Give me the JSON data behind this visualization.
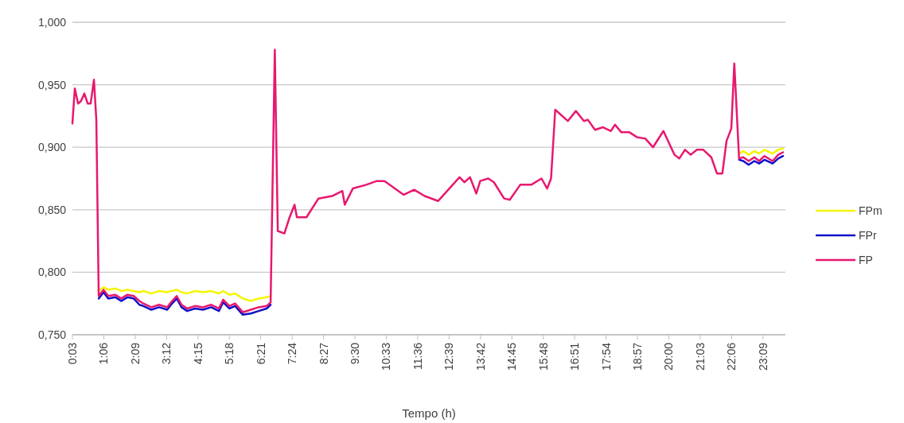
{
  "chart_data": {
    "type": "line",
    "xlabel": "Tempo (h)",
    "x": [
      0.05,
      0.13,
      0.24,
      0.34,
      0.45,
      0.56,
      0.66,
      0.77,
      0.85,
      0.93,
      1.09,
      1.25,
      1.49,
      1.68,
      1.89,
      2.1,
      2.29,
      2.42,
      2.69,
      2.95,
      3.22,
      3.35,
      3.54,
      3.7,
      3.89,
      4.15,
      4.42,
      4.69,
      4.95,
      5.09,
      5.3,
      5.49,
      5.75,
      6.02,
      6.28,
      6.55,
      6.68,
      6.82,
      6.92,
      7.14,
      7.3,
      7.48,
      7.56,
      7.88,
      8.28,
      8.74,
      9.08,
      9.16,
      9.43,
      9.88,
      10.23,
      10.49,
      11.13,
      11.48,
      11.83,
      12.28,
      13.0,
      13.16,
      13.35,
      13.56,
      13.69,
      13.96,
      14.15,
      14.49,
      14.68,
      15.03,
      15.4,
      15.74,
      15.93,
      16.06,
      16.2,
      16.62,
      16.89,
      17.16,
      17.29,
      17.53,
      17.8,
      18.06,
      18.2,
      18.41,
      18.68,
      18.94,
      19.21,
      19.47,
      19.82,
      20.09,
      20.19,
      20.35,
      20.54,
      20.73,
      20.94,
      21.15,
      21.42,
      21.61,
      21.79,
      21.93,
      22.09,
      22.19,
      22.35,
      22.49,
      22.67,
      22.86,
      23.02,
      23.2,
      23.47,
      23.66,
      23.82
    ],
    "series": [
      {
        "name": "FPm",
        "color": "#f5f500",
        "values": [
          null,
          null,
          null,
          null,
          null,
          null,
          null,
          null,
          null,
          0.785,
          0.788,
          0.786,
          0.787,
          0.785,
          0.786,
          0.785,
          0.784,
          0.785,
          0.783,
          0.785,
          0.784,
          0.785,
          0.786,
          0.784,
          0.783,
          0.785,
          0.784,
          0.785,
          0.783,
          0.785,
          0.782,
          0.783,
          0.779,
          0.777,
          0.779,
          0.78,
          0.781,
          null,
          null,
          null,
          null,
          null,
          null,
          null,
          null,
          null,
          null,
          null,
          null,
          null,
          null,
          null,
          null,
          null,
          null,
          null,
          null,
          null,
          null,
          null,
          null,
          null,
          null,
          null,
          null,
          null,
          null,
          null,
          null,
          null,
          null,
          null,
          null,
          null,
          null,
          null,
          null,
          null,
          null,
          null,
          null,
          null,
          null,
          null,
          null,
          null,
          null,
          null,
          null,
          null,
          null,
          null,
          null,
          null,
          null,
          null,
          null,
          null,
          0.895,
          0.897,
          0.894,
          0.897,
          0.895,
          0.898,
          0.895,
          0.898,
          0.899
        ]
      },
      {
        "name": "FPr",
        "color": "#1010c8",
        "values": [
          null,
          null,
          null,
          null,
          null,
          null,
          null,
          null,
          null,
          0.779,
          0.784,
          0.779,
          0.78,
          0.777,
          0.78,
          0.779,
          0.774,
          0.773,
          0.77,
          0.772,
          0.77,
          0.774,
          0.779,
          0.772,
          0.769,
          0.771,
          0.77,
          0.772,
          0.769,
          0.776,
          0.771,
          0.773,
          0.766,
          0.767,
          0.769,
          0.771,
          0.774,
          null,
          null,
          null,
          null,
          null,
          null,
          null,
          null,
          null,
          null,
          null,
          null,
          null,
          null,
          null,
          null,
          null,
          null,
          null,
          null,
          null,
          null,
          null,
          null,
          null,
          null,
          null,
          null,
          null,
          null,
          null,
          null,
          null,
          null,
          null,
          null,
          null,
          null,
          null,
          null,
          null,
          null,
          null,
          null,
          null,
          null,
          null,
          null,
          null,
          null,
          null,
          null,
          null,
          null,
          null,
          null,
          null,
          null,
          null,
          null,
          null,
          0.89,
          0.889,
          0.886,
          0.889,
          0.887,
          0.89,
          0.887,
          0.891,
          0.893
        ]
      },
      {
        "name": "FP",
        "color": "#e8186e",
        "values": [
          0.919,
          0.947,
          0.935,
          0.937,
          0.943,
          0.935,
          0.935,
          0.954,
          0.922,
          0.781,
          0.786,
          0.781,
          0.782,
          0.779,
          0.782,
          0.781,
          0.777,
          0.775,
          0.772,
          0.774,
          0.772,
          0.776,
          0.781,
          0.774,
          0.771,
          0.773,
          0.772,
          0.774,
          0.771,
          0.778,
          0.773,
          0.775,
          0.768,
          0.77,
          0.772,
          0.773,
          0.776,
          0.978,
          0.833,
          0.831,
          0.843,
          0.854,
          0.844,
          0.844,
          0.859,
          0.861,
          0.865,
          0.854,
          0.867,
          0.87,
          0.873,
          0.873,
          0.862,
          0.866,
          0.861,
          0.857,
          0.876,
          0.872,
          0.876,
          0.863,
          0.873,
          0.875,
          0.872,
          0.859,
          0.858,
          0.87,
          0.87,
          0.875,
          0.867,
          0.875,
          0.93,
          0.921,
          0.929,
          0.921,
          0.922,
          0.914,
          0.916,
          0.913,
          0.918,
          0.912,
          0.912,
          0.908,
          0.907,
          0.9,
          0.913,
          0.899,
          0.894,
          0.891,
          0.898,
          0.894,
          0.898,
          0.898,
          0.892,
          0.879,
          0.879,
          0.905,
          0.915,
          0.967,
          0.891,
          0.892,
          0.889,
          0.892,
          0.889,
          0.893,
          0.889,
          0.894,
          0.896
        ]
      }
    ],
    "xlim": [
      0.05,
      23.9
    ],
    "xticks": [
      {
        "value": 0.05,
        "label": "0:03"
      },
      {
        "value": 1.1,
        "label": "1:06"
      },
      {
        "value": 2.15,
        "label": "2:09"
      },
      {
        "value": 3.2,
        "label": "3:12"
      },
      {
        "value": 4.25,
        "label": "4:15"
      },
      {
        "value": 5.3,
        "label": "5:18"
      },
      {
        "value": 6.35,
        "label": "6:21"
      },
      {
        "value": 7.4,
        "label": "7:24"
      },
      {
        "value": 8.45,
        "label": "8:27"
      },
      {
        "value": 9.5,
        "label": "9:30"
      },
      {
        "value": 10.55,
        "label": "10:33"
      },
      {
        "value": 11.6,
        "label": "11:36"
      },
      {
        "value": 12.65,
        "label": "12:39"
      },
      {
        "value": 13.7,
        "label": "13:42"
      },
      {
        "value": 14.75,
        "label": "14:45"
      },
      {
        "value": 15.8,
        "label": "15:48"
      },
      {
        "value": 16.85,
        "label": "16:51"
      },
      {
        "value": 17.9,
        "label": "17:54"
      },
      {
        "value": 18.95,
        "label": "18:57"
      },
      {
        "value": 20.0,
        "label": "20:00"
      },
      {
        "value": 21.05,
        "label": "21:03"
      },
      {
        "value": 22.1,
        "label": "22:06"
      },
      {
        "value": 23.15,
        "label": "23:09"
      }
    ],
    "ylim": [
      0.75,
      1.0
    ],
    "yticks": [
      {
        "value": 0.75,
        "label": "0,750"
      },
      {
        "value": 0.8,
        "label": "0,800"
      },
      {
        "value": 0.85,
        "label": "0,850"
      },
      {
        "value": 0.9,
        "label": "0,900"
      },
      {
        "value": 0.95,
        "label": "0,950"
      },
      {
        "value": 1.0,
        "label": "1,000"
      }
    ],
    "grid": "y",
    "legend": "right",
    "line_style": "solid",
    "marker": "none"
  }
}
